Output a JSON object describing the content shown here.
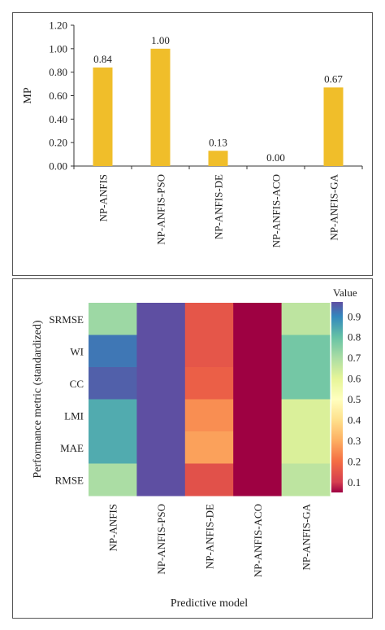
{
  "chart_data": [
    {
      "type": "bar",
      "categories": [
        "NP-ANFIS",
        "NP-ANFIS-PSO",
        "NP-ANFIS-DE",
        "NP-ANFIS-ACO",
        "NP-ANFIS-GA"
      ],
      "values": [
        0.84,
        1.0,
        0.13,
        0.0,
        0.67
      ],
      "data_labels": [
        "0.84",
        "1.00",
        "0.13",
        "0.00",
        "0.67"
      ],
      "ylabel": "MP",
      "xlabel": "",
      "ylim": [
        0,
        1.2
      ],
      "yticks": [
        "0.00",
        "0.20",
        "0.40",
        "0.60",
        "0.80",
        "1.00",
        "1.20"
      ],
      "bar_color": "#F0BE2A",
      "grid": false
    },
    {
      "type": "heatmap",
      "x_categories": [
        "NP-ANFIS",
        "NP-ANFIS-PSO",
        "NP-ANFIS-DE",
        "NP-ANFIS-ACO",
        "NP-ANFIS-GA"
      ],
      "y_categories": [
        "SRMSE",
        "WI",
        "CC",
        "LMI",
        "MAE",
        "RMSE"
      ],
      "xlabel": "Predictive model",
      "ylabel": "Performance metric (standardized)",
      "values": [
        [
          0.72,
          1.0,
          0.15,
          0.0,
          0.67
        ],
        [
          0.93,
          1.0,
          0.15,
          0.0,
          0.78
        ],
        [
          0.97,
          1.0,
          0.17,
          0.0,
          0.78
        ],
        [
          0.84,
          1.0,
          0.25,
          0.0,
          0.62
        ],
        [
          0.84,
          1.0,
          0.28,
          0.0,
          0.62
        ],
        [
          0.7,
          1.0,
          0.14,
          0.0,
          0.67
        ]
      ],
      "legend_title": "Value",
      "legend_ticks": [
        "0.9",
        "0.8",
        "0.7",
        "0.6",
        "0.5",
        "0.4",
        "0.3",
        "0.2",
        "0.1"
      ],
      "colorscale": [
        {
          "v": 0.0,
          "c": "#9E0142"
        },
        {
          "v": 0.1,
          "c": "#D53E4F"
        },
        {
          "v": 0.2,
          "c": "#F46D43"
        },
        {
          "v": 0.3,
          "c": "#FDAE61"
        },
        {
          "v": 0.4,
          "c": "#FEE08B"
        },
        {
          "v": 0.5,
          "c": "#FFFFBF"
        },
        {
          "v": 0.6,
          "c": "#E6F598"
        },
        {
          "v": 0.7,
          "c": "#ABDDA4"
        },
        {
          "v": 0.8,
          "c": "#66C2A5"
        },
        {
          "v": 0.9,
          "c": "#3288BD"
        },
        {
          "v": 1.0,
          "c": "#5E4FA2"
        }
      ]
    }
  ]
}
